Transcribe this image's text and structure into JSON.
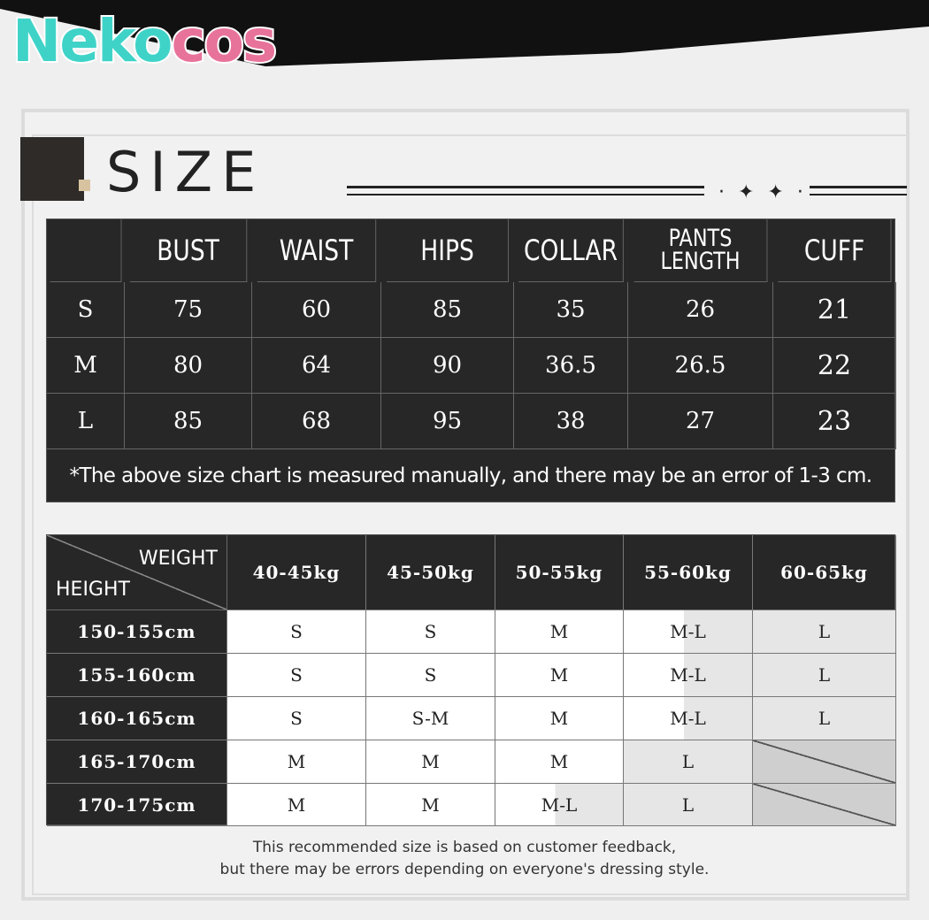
{
  "brand": {
    "logo_text": "Nekocos",
    "watermark": "Nekocos",
    "colors": {
      "teal": "#3fd3c8",
      "pink": "#e8739a"
    }
  },
  "title": "SIZE",
  "decoration": "✦",
  "measure_table": {
    "headers": [
      "",
      "BUST",
      "WAIST",
      "HIPS",
      "COLLAR",
      "PANTS LENGTH",
      "CUFF"
    ],
    "rows": [
      [
        "S",
        "75",
        "60",
        "85",
        "35",
        "26",
        "21"
      ],
      [
        "M",
        "80",
        "64",
        "90",
        "36.5",
        "26.5",
        "22"
      ],
      [
        "L",
        "85",
        "68",
        "95",
        "38",
        "27",
        "23"
      ]
    ],
    "note": "*The above size chart is measured manually, and there may be an error of 1-3 cm."
  },
  "recommend_table": {
    "corner_top": "WEIGHT",
    "corner_bottom": "HEIGHT",
    "weights": [
      "40-45kg",
      "45-50kg",
      "50-55kg",
      "55-60kg",
      "60-65kg"
    ],
    "rows": [
      {
        "height": "150-155cm",
        "cells": [
          {
            "v": "S",
            "shade": "w"
          },
          {
            "v": "S",
            "shade": "w"
          },
          {
            "v": "M",
            "shade": "w"
          },
          {
            "v": "M-L",
            "shade": "s"
          },
          {
            "v": "L",
            "shade": "g"
          }
        ]
      },
      {
        "height": "155-160cm",
        "cells": [
          {
            "v": "S",
            "shade": "w"
          },
          {
            "v": "S",
            "shade": "w"
          },
          {
            "v": "M",
            "shade": "w"
          },
          {
            "v": "M-L",
            "shade": "s"
          },
          {
            "v": "L",
            "shade": "g"
          }
        ]
      },
      {
        "height": "160-165cm",
        "cells": [
          {
            "v": "S",
            "shade": "w"
          },
          {
            "v": "S-M",
            "shade": "w"
          },
          {
            "v": "M",
            "shade": "w"
          },
          {
            "v": "M-L",
            "shade": "s"
          },
          {
            "v": "L",
            "shade": "g"
          }
        ]
      },
      {
        "height": "165-170cm",
        "cells": [
          {
            "v": "M",
            "shade": "w"
          },
          {
            "v": "M",
            "shade": "w"
          },
          {
            "v": "M",
            "shade": "w"
          },
          {
            "v": "L",
            "shade": "g"
          },
          {
            "v": "",
            "shade": "x"
          }
        ]
      },
      {
        "height": "170-175cm",
        "cells": [
          {
            "v": "M",
            "shade": "w"
          },
          {
            "v": "M",
            "shade": "w"
          },
          {
            "v": "M-L",
            "shade": "s"
          },
          {
            "v": "L",
            "shade": "g"
          },
          {
            "v": "",
            "shade": "x"
          }
        ]
      }
    ]
  },
  "footer": {
    "line1": "This recommended size is based on customer feedback,",
    "line2": "but there may be errors depending on everyone's dressing style."
  }
}
